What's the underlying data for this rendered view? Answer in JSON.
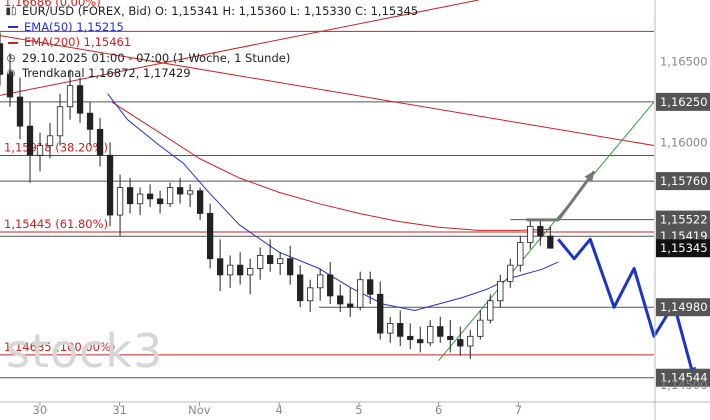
{
  "chart_data": {
    "type": "candlestick",
    "legend": {
      "instrument": "EUR/USD (FOREX, Bid)",
      "ohlc": "O: 1,15341  H: 1,15360  L: 1,15330  C: 1,15345",
      "ema50": "EMA(50)  1,15215",
      "ema200": "EMA(200)  1,15461",
      "period": "29.10.2025 01:00 - 07:00   (1 Woche, 1 Stunde)",
      "channel": "Trendkanal  1,16872, 1,17429"
    },
    "top_partial_label": "1,16686 (0.00%)",
    "watermark": "stock3",
    "ylim": [
      1.144,
      1.1688
    ],
    "y_ticks": [
      {
        "label": "1,16500",
        "value": 1.165
      },
      {
        "label": "1,16000",
        "value": 1.16
      },
      {
        "label": "1,14500",
        "value": 1.145
      }
    ],
    "x_ticks": [
      {
        "label": "30",
        "x": 0.5
      },
      {
        "label": "31",
        "x": 1.5
      },
      {
        "label": "Nov",
        "x": 2.5
      },
      {
        "label": "4",
        "x": 3.5
      },
      {
        "label": "5",
        "x": 4.5
      },
      {
        "label": "6",
        "x": 5.5
      },
      {
        "label": "7",
        "x": 6.5
      }
    ],
    "horizontal_levels": [
      {
        "value": 1.16686,
        "color": "#cc2222"
      },
      {
        "value": 1.1625,
        "color": "#555555",
        "tag": "1,16250"
      },
      {
        "value": 1.15918,
        "color": "#cc2222",
        "text": "1,15918 (38.20%)"
      },
      {
        "value": 1.1576,
        "color": "#555555",
        "tag": "1,15760"
      },
      {
        "value": 1.15522,
        "color": "#555555",
        "tag": "1,15522",
        "x_start": 6.4
      },
      {
        "value": 1.15445,
        "color": "#cc2222",
        "text": "1,15445 (61.80%)"
      },
      {
        "value": 1.15419,
        "color": "#555555",
        "tag": "1,15419"
      },
      {
        "value": 1.1498,
        "color": "#555555",
        "tag": "1,14980",
        "x_start": 4.0
      },
      {
        "value": 1.14685,
        "color": "#cc2222",
        "text": "1,14685 (100.00%)"
      },
      {
        "value": 1.14544,
        "color": "#555555",
        "tag": "1,14544"
      }
    ],
    "current_price": {
      "value": 1.15345,
      "label": "1,15345",
      "color": "#111111"
    },
    "ema200_line": {
      "color": "#cc2222",
      "points": [
        [
          1.4,
          1.1625
        ],
        [
          2.0,
          1.1606
        ],
        [
          2.5,
          1.159
        ],
        [
          3.0,
          1.1578
        ],
        [
          3.5,
          1.1569
        ],
        [
          4.0,
          1.1562
        ],
        [
          4.5,
          1.1556
        ],
        [
          5.0,
          1.1551
        ],
        [
          5.5,
          1.15475
        ],
        [
          6.0,
          1.15455
        ],
        [
          6.5,
          1.15455
        ],
        [
          6.9,
          1.15461
        ]
      ]
    },
    "ema50_line": {
      "color": "#2233cc",
      "points": [
        [
          1.35,
          1.163
        ],
        [
          1.6,
          1.1614
        ],
        [
          2.0,
          1.1598
        ],
        [
          2.3,
          1.1587
        ],
        [
          2.6,
          1.157
        ],
        [
          3.0,
          1.1549
        ],
        [
          3.5,
          1.1532
        ],
        [
          4.0,
          1.1522
        ],
        [
          4.4,
          1.151
        ],
        [
          4.8,
          1.15
        ],
        [
          5.2,
          1.1496
        ],
        [
          5.5,
          1.15
        ],
        [
          5.8,
          1.1504
        ],
        [
          6.1,
          1.1509
        ],
        [
          6.4,
          1.1516
        ],
        [
          6.8,
          1.15215
        ],
        [
          7.0,
          1.1526
        ]
      ]
    },
    "red_channel_upper": {
      "color": "#cc2222",
      "points": [
        [
          0.0,
          1.1629
        ],
        [
          6.0,
          1.1688
        ]
      ]
    },
    "red_channel_lower": {
      "color": "#cc2222",
      "points": [
        [
          0.0,
          1.1666
        ],
        [
          8.2,
          1.1598
        ]
      ]
    },
    "green_trendline": {
      "color": "#339933",
      "points": [
        [
          5.5,
          1.1465
        ],
        [
          8.2,
          1.1625
        ]
      ]
    },
    "grey_arrow": {
      "color": "#777777",
      "points": [
        [
          6.6,
          1.1552
        ],
        [
          7.0,
          1.1552
        ],
        [
          7.45,
          1.1582
        ]
      ]
    },
    "blue_arrow": {
      "color": "#1a33cc",
      "points": [
        [
          7.0,
          1.154
        ],
        [
          7.2,
          1.1528
        ],
        [
          7.4,
          1.154
        ],
        [
          7.7,
          1.1498
        ],
        [
          7.95,
          1.1522
        ],
        [
          8.2,
          1.148
        ],
        [
          8.45,
          1.15
        ],
        [
          8.7,
          1.14544
        ]
      ]
    },
    "candles_ohlc": [
      [
        1.1661,
        1.1668,
        1.1635,
        1.1642
      ],
      [
        1.1642,
        1.1655,
        1.1622,
        1.1628
      ],
      [
        1.1628,
        1.164,
        1.1602,
        1.161
      ],
      [
        1.161,
        1.1625,
        1.1575,
        1.1592
      ],
      [
        1.1592,
        1.1606,
        1.1582,
        1.1598
      ],
      [
        1.1598,
        1.1612,
        1.159,
        1.1604
      ],
      [
        1.1604,
        1.163,
        1.1598,
        1.1622
      ],
      [
        1.1622,
        1.1645,
        1.1614,
        1.1635
      ],
      [
        1.1635,
        1.164,
        1.1612,
        1.1618
      ],
      [
        1.1618,
        1.1625,
        1.1598,
        1.1608
      ],
      [
        1.1608,
        1.1615,
        1.1585,
        1.1592
      ],
      [
        1.1592,
        1.16,
        1.1548,
        1.1555
      ],
      [
        1.1555,
        1.158,
        1.1542,
        1.1572
      ],
      [
        1.1572,
        1.1578,
        1.1556,
        1.1562
      ],
      [
        1.1562,
        1.1572,
        1.1555,
        1.1568
      ],
      [
        1.1568,
        1.1574,
        1.156,
        1.1565
      ],
      [
        1.1565,
        1.157,
        1.1556,
        1.1562
      ],
      [
        1.1562,
        1.1575,
        1.156,
        1.1572
      ],
      [
        1.1572,
        1.1578,
        1.1562,
        1.1568
      ],
      [
        1.1568,
        1.1574,
        1.156,
        1.157
      ],
      [
        1.157,
        1.1572,
        1.1552,
        1.1556
      ],
      [
        1.1556,
        1.1562,
        1.1522,
        1.1528
      ],
      [
        1.1528,
        1.154,
        1.1508,
        1.1518
      ],
      [
        1.1518,
        1.153,
        1.151,
        1.1524
      ],
      [
        1.1524,
        1.1532,
        1.1512,
        1.1518
      ],
      [
        1.1518,
        1.1528,
        1.1506,
        1.1522
      ],
      [
        1.1522,
        1.1535,
        1.1515,
        1.153
      ],
      [
        1.153,
        1.154,
        1.152,
        1.1525
      ],
      [
        1.1525,
        1.1532,
        1.1518,
        1.1528
      ],
      [
        1.1528,
        1.1536,
        1.1512,
        1.1518
      ],
      [
        1.1518,
        1.1524,
        1.1498,
        1.1502
      ],
      [
        1.1502,
        1.1515,
        1.1495,
        1.151
      ],
      [
        1.151,
        1.1522,
        1.1502,
        1.1518
      ],
      [
        1.1518,
        1.1526,
        1.15,
        1.1505
      ],
      [
        1.1505,
        1.1512,
        1.1495,
        1.15
      ],
      [
        1.15,
        1.151,
        1.1492,
        1.1498
      ],
      [
        1.1498,
        1.152,
        1.1496,
        1.1515
      ],
      [
        1.1515,
        1.152,
        1.15,
        1.1506
      ],
      [
        1.1506,
        1.1514,
        1.1478,
        1.1482
      ],
      [
        1.1482,
        1.1492,
        1.1476,
        1.1488
      ],
      [
        1.1488,
        1.1496,
        1.1474,
        1.148
      ],
      [
        1.148,
        1.1488,
        1.1472,
        1.1478
      ],
      [
        1.1478,
        1.1486,
        1.147,
        1.1476
      ],
      [
        1.1476,
        1.149,
        1.1474,
        1.1486
      ],
      [
        1.1486,
        1.1492,
        1.1476,
        1.148
      ],
      [
        1.148,
        1.149,
        1.147,
        1.1478
      ],
      [
        1.1478,
        1.1486,
        1.1468,
        1.1474
      ],
      [
        1.1474,
        1.1484,
        1.1466,
        1.148
      ],
      [
        1.148,
        1.1496,
        1.1478,
        1.149
      ],
      [
        1.149,
        1.1506,
        1.1488,
        1.1502
      ],
      [
        1.1502,
        1.1518,
        1.1498,
        1.1514
      ],
      [
        1.1514,
        1.1528,
        1.151,
        1.1524
      ],
      [
        1.1524,
        1.1542,
        1.152,
        1.1538
      ],
      [
        1.1538,
        1.1552,
        1.1534,
        1.1548
      ],
      [
        1.1548,
        1.1552,
        1.1536,
        1.1542
      ],
      [
        1.1542,
        1.1548,
        1.1536,
        1.15345
      ]
    ]
  }
}
